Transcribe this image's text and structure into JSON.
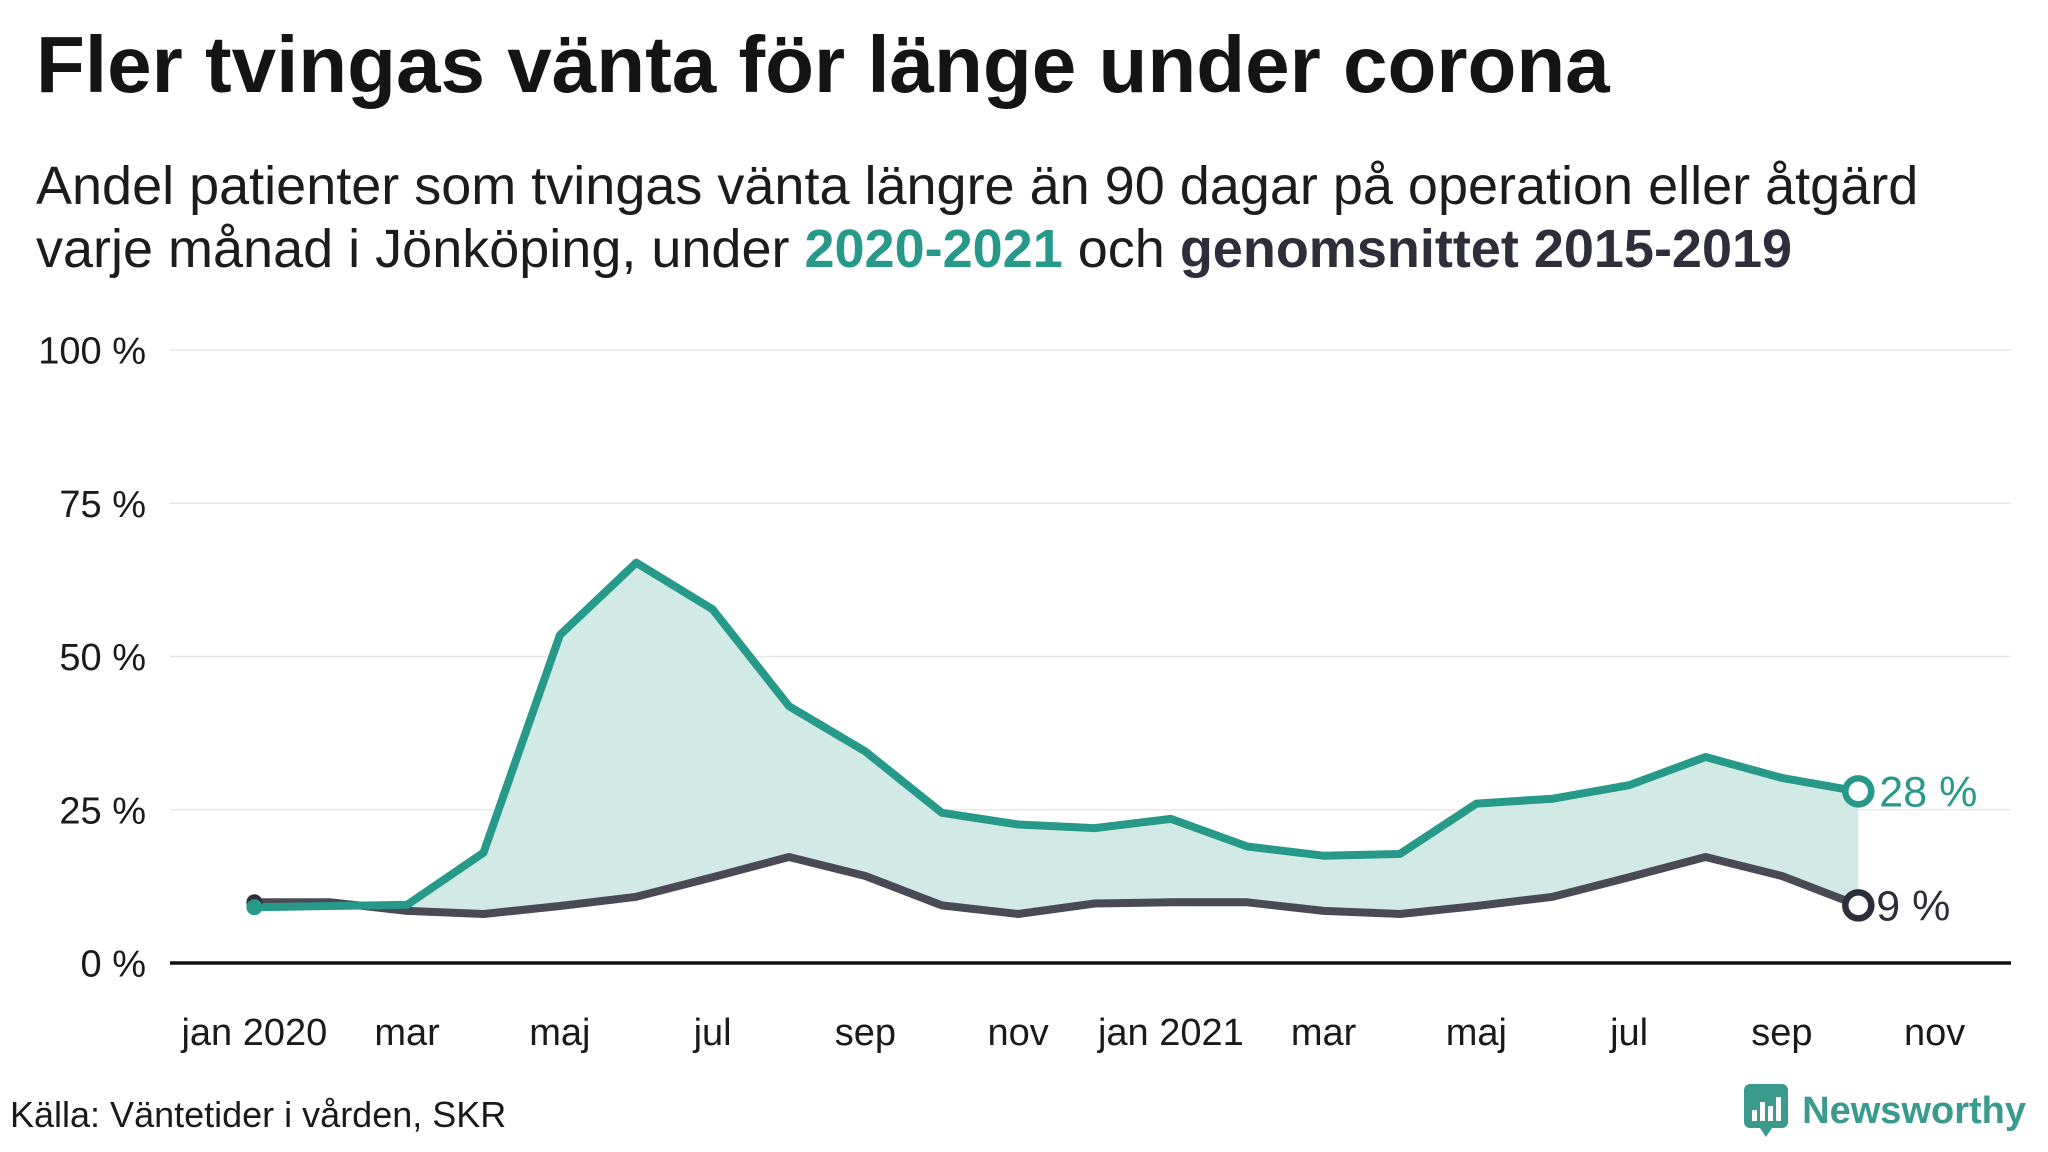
{
  "chart_data": {
    "type": "line",
    "title": "Fler tvingas vänta för länge under corona",
    "subtitle": {
      "line1": "Andel patienter som tvingas vänta längre än 90 dagar på operation eller åtgärd",
      "line2_start": "varje månad i Jönköping, under ",
      "line2_middle": " och "
    },
    "x": [
      "2020-01",
      "2020-02",
      "2020-03",
      "2020-04",
      "2020-05",
      "2020-06",
      "2020-07",
      "2020-08",
      "2020-09",
      "2020-10",
      "2020-11",
      "2020-12",
      "2021-01",
      "2021-02",
      "2021-03",
      "2021-04",
      "2021-05",
      "2021-06",
      "2021-07",
      "2021-08",
      "2021-09",
      "2021-10"
    ],
    "xlim": [
      "2019-12",
      "2021-12"
    ],
    "x_ticks": [
      {
        "x": "2020-01",
        "label": "jan 2020"
      },
      {
        "x": "2020-03",
        "label": "mar"
      },
      {
        "x": "2020-05",
        "label": "maj"
      },
      {
        "x": "2020-07",
        "label": "jul"
      },
      {
        "x": "2020-09",
        "label": "sep"
      },
      {
        "x": "2020-11",
        "label": "nov"
      },
      {
        "x": "2021-01",
        "label": "jan 2021"
      },
      {
        "x": "2021-03",
        "label": "mar"
      },
      {
        "x": "2021-05",
        "label": "maj"
      },
      {
        "x": "2021-07",
        "label": "jul"
      },
      {
        "x": "2021-09",
        "label": "sep"
      },
      {
        "x": "2021-11",
        "label": "nov"
      }
    ],
    "ylim": [
      0,
      100
    ],
    "y_ticks": [
      {
        "value": 0,
        "label": "0 %"
      },
      {
        "value": 25,
        "label": "25 %"
      },
      {
        "value": 50,
        "label": "50 %"
      },
      {
        "value": 75,
        "label": "75 %"
      },
      {
        "value": 100,
        "label": "100 %"
      }
    ],
    "grid": true,
    "area_between_series": true,
    "series": [
      {
        "name": "2020-2021",
        "color": "#26998b",
        "values": [
          9.1,
          9.3,
          9.5,
          18.0,
          53.5,
          65.3,
          57.7,
          41.9,
          34.5,
          24.5,
          22.6,
          22.0,
          23.5,
          19.0,
          17.5,
          17.8,
          26.0,
          26.8,
          29.0,
          33.6,
          30.2,
          28.0
        ],
        "end_label": "28 %"
      },
      {
        "name": "genomsnittet 2015-2019",
        "color": "#4a4a56",
        "values": [
          9.9,
          9.9,
          8.5,
          8.0,
          9.3,
          10.8,
          14.0,
          17.3,
          14.2,
          9.4,
          8.0,
          9.7,
          9.9,
          9.9,
          8.5,
          8.0,
          9.3,
          10.8,
          14.0,
          17.3,
          14.2,
          9.4
        ],
        "end_label": "9 %"
      }
    ]
  },
  "footer": {
    "source": "Källa: Väntetider i vården, SKR",
    "logo_text": "Newsworthy",
    "logo_icon": "newsworthy-logo-icon"
  },
  "colors": {
    "teal": "#26998b",
    "dark": "#2e2e3a",
    "area_fill": "#d2eae5",
    "grid": "#e8e8e8",
    "axis": "#111111",
    "logo": "#3a9a8d"
  }
}
